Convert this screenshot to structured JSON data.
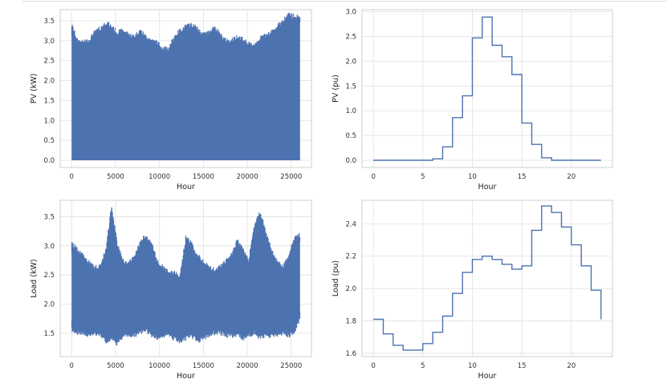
{
  "chart_data": [
    {
      "id": "pv-kw",
      "type": "line",
      "style": "dense-fill",
      "xlabel": "Hour",
      "ylabel": "PV (kW)",
      "xlim": [
        -1300,
        27300
      ],
      "ylim": [
        -0.18,
        3.78
      ],
      "xticks": [
        0,
        5000,
        10000,
        15000,
        20000,
        25000
      ],
      "yticks": [
        0.0,
        0.5,
        1.0,
        1.5,
        2.0,
        2.5,
        3.0,
        3.5
      ],
      "ytick_decimals": 1,
      "series": [
        {
          "name": "PV",
          "x": [
            0,
            650,
            1300,
            1950,
            2600,
            3250,
            3900,
            4550,
            5200,
            5850,
            6500,
            7150,
            7800,
            8450,
            9100,
            9750,
            10400,
            11050,
            11700,
            12350,
            13000,
            13650,
            14300,
            14950,
            15600,
            16250,
            16900,
            17550,
            18200,
            18850,
            19500,
            20150,
            20800,
            21450,
            22100,
            22750,
            23400,
            24050,
            24700,
            25350,
            26000
          ],
          "low": [
            0,
            0,
            0,
            0,
            0,
            0,
            0,
            0,
            0,
            0,
            0,
            0,
            0,
            0,
            0,
            0,
            0,
            0,
            0,
            0,
            0,
            0,
            0,
            0,
            0,
            0,
            0,
            0,
            0,
            0,
            0,
            0,
            0,
            0,
            0,
            0,
            0,
            0,
            0,
            0,
            0
          ],
          "high": [
            3.35,
            2.95,
            2.9,
            2.95,
            3.15,
            3.25,
            3.4,
            3.3,
            3.15,
            3.2,
            3.1,
            3.05,
            3.2,
            3.05,
            2.95,
            2.9,
            2.75,
            2.75,
            3.05,
            3.2,
            3.3,
            3.35,
            3.25,
            3.1,
            3.15,
            3.3,
            3.1,
            2.95,
            2.95,
            3.05,
            3.0,
            2.85,
            2.85,
            3.0,
            3.1,
            3.15,
            3.3,
            3.45,
            3.6,
            3.55,
            3.55
          ],
          "color": "#4C72B0"
        }
      ]
    },
    {
      "id": "pv-pu",
      "type": "line",
      "style": "step",
      "xlabel": "Hour",
      "ylabel": "PV (pu)",
      "xlim": [
        -1.15,
        24.15
      ],
      "ylim": [
        -0.145,
        3.04
      ],
      "xticks": [
        0,
        5,
        10,
        15,
        20
      ],
      "yticks": [
        0.0,
        0.5,
        1.0,
        1.5,
        2.0,
        2.5,
        3.0
      ],
      "ytick_decimals": 1,
      "series": [
        {
          "name": "PV",
          "x": [
            0,
            1,
            2,
            3,
            4,
            5,
            6,
            7,
            8,
            9,
            10,
            11,
            12,
            13,
            14,
            15,
            16,
            17,
            18,
            19,
            20,
            21,
            22,
            23
          ],
          "values": [
            0.0,
            0.0,
            0.0,
            0.0,
            0.0,
            0.0,
            0.03,
            0.27,
            0.86,
            1.3,
            2.47,
            2.89,
            2.32,
            2.09,
            1.73,
            0.75,
            0.32,
            0.05,
            0.0,
            0.0,
            0.0,
            0.0,
            0.0,
            0.0
          ],
          "color": "#4C72B0"
        }
      ]
    },
    {
      "id": "load-kw",
      "type": "line",
      "style": "dense-fill",
      "xlabel": "Hour",
      "ylabel": "Load (kW)",
      "xlim": [
        -1300,
        27300
      ],
      "ylim": [
        1.1,
        3.78
      ],
      "xticks": [
        0,
        5000,
        10000,
        15000,
        20000,
        25000
      ],
      "yticks": [
        1.5,
        2.0,
        2.5,
        3.0,
        3.5
      ],
      "ytick_decimals": 1,
      "series": [
        {
          "name": "Load",
          "x": [
            0,
            650,
            1300,
            1950,
            2600,
            3250,
            3900,
            4550,
            5200,
            5850,
            6500,
            7150,
            7800,
            8450,
            9100,
            9750,
            10400,
            11050,
            11700,
            12350,
            13000,
            13650,
            14300,
            14950,
            15600,
            16250,
            16900,
            17550,
            18200,
            18850,
            19500,
            20150,
            20800,
            21450,
            22100,
            22750,
            23400,
            24050,
            24700,
            25350,
            26000
          ],
          "low": [
            1.6,
            1.55,
            1.55,
            1.5,
            1.55,
            1.5,
            1.4,
            1.45,
            1.35,
            1.5,
            1.5,
            1.5,
            1.55,
            1.6,
            1.5,
            1.45,
            1.5,
            1.5,
            1.45,
            1.4,
            1.45,
            1.5,
            1.4,
            1.45,
            1.5,
            1.55,
            1.55,
            1.5,
            1.5,
            1.5,
            1.45,
            1.5,
            1.55,
            1.45,
            1.5,
            1.5,
            1.5,
            1.55,
            1.5,
            1.55,
            1.8
          ],
          "high": [
            3.0,
            2.9,
            2.8,
            2.7,
            2.6,
            2.6,
            2.9,
            3.65,
            3.0,
            2.7,
            2.65,
            2.8,
            3.0,
            3.15,
            3.0,
            2.7,
            2.6,
            2.5,
            2.5,
            2.45,
            3.1,
            3.0,
            2.8,
            2.7,
            2.6,
            2.55,
            2.6,
            2.7,
            2.8,
            3.05,
            2.9,
            2.7,
            3.3,
            3.55,
            3.2,
            2.9,
            2.7,
            2.6,
            2.8,
            3.1,
            3.15
          ],
          "color": "#4C72B0"
        }
      ]
    },
    {
      "id": "load-pu",
      "type": "line",
      "style": "step",
      "xlabel": "Hour",
      "ylabel": "Load (pu)",
      "xlim": [
        -1.15,
        24.15
      ],
      "ylim": [
        1.58,
        2.545
      ],
      "xticks": [
        0,
        5,
        10,
        15,
        20
      ],
      "yticks": [
        1.6,
        1.8,
        2.0,
        2.2,
        2.4
      ],
      "ytick_decimals": 1,
      "series": [
        {
          "name": "Load",
          "x": [
            0,
            1,
            2,
            3,
            4,
            5,
            6,
            7,
            8,
            9,
            10,
            11,
            12,
            13,
            14,
            15,
            16,
            17,
            18,
            19,
            20,
            21,
            22,
            23
          ],
          "values": [
            1.81,
            1.72,
            1.65,
            1.62,
            1.62,
            1.66,
            1.73,
            1.83,
            1.97,
            2.1,
            2.18,
            2.2,
            2.18,
            2.15,
            2.12,
            2.14,
            2.36,
            2.51,
            2.47,
            2.38,
            2.27,
            2.14,
            1.99,
            1.81
          ],
          "color": "#4C72B0"
        }
      ]
    }
  ]
}
